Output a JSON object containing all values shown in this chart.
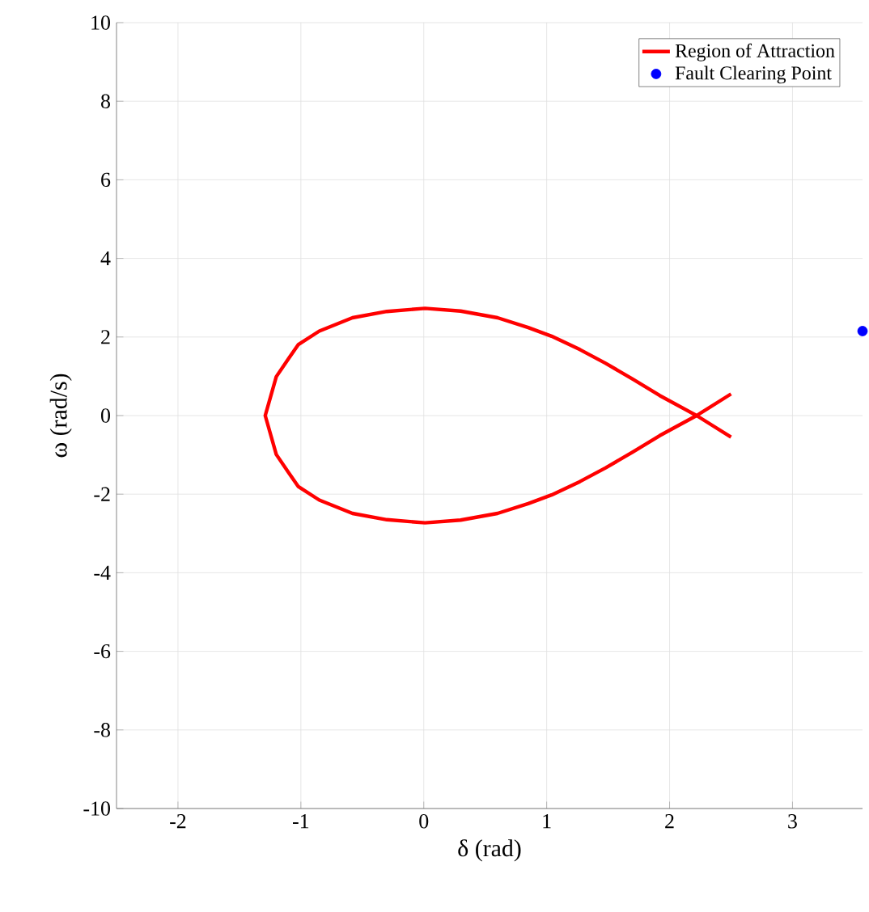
{
  "chart_data": {
    "type": "line",
    "xlabel": "δ (rad)",
    "ylabel": "ω (rad/s)",
    "xlim": [
      -2.5,
      3.57
    ],
    "ylim": [
      -10,
      10
    ],
    "xticks": [
      -2,
      -1,
      0,
      1,
      2,
      3
    ],
    "yticks": [
      -10,
      -8,
      -6,
      -4,
      -2,
      0,
      2,
      4,
      6,
      8,
      10
    ],
    "grid": true,
    "legend": "top right",
    "series": [
      {
        "name": "Region of Attraction",
        "color": "#ff0000",
        "marker": "none",
        "line_style": "solid",
        "x": [
          2.5,
          2.22,
          1.92,
          1.7,
          1.48,
          1.27,
          1.04,
          0.85,
          0.6,
          0.3,
          0.01,
          -0.3,
          -0.58,
          -0.85,
          -1.02,
          -1.1,
          -1.2,
          -1.29,
          -1.2,
          -1.1,
          -1.02,
          -0.85,
          -0.58,
          -0.3,
          0.01,
          0.3,
          0.6,
          0.85,
          1.04,
          1.27,
          1.48,
          1.7,
          1.92,
          2.22,
          2.5
        ],
        "values": [
          0.55,
          0,
          -0.51,
          -0.93,
          -1.33,
          -1.68,
          -2.02,
          -2.24,
          -2.49,
          -2.66,
          -2.73,
          -2.65,
          -2.49,
          -2.15,
          -1.81,
          -1.45,
          -0.99,
          0,
          0.99,
          1.45,
          1.81,
          2.15,
          2.49,
          2.65,
          2.73,
          2.66,
          2.49,
          2.24,
          2.02,
          1.68,
          1.33,
          0.93,
          0.51,
          0,
          -0.55
        ]
      },
      {
        "name": "Fault Clearing Point",
        "type": "scatter",
        "color": "#0000ff",
        "marker": "circle",
        "x": [
          3.57
        ],
        "values": [
          2.15
        ]
      }
    ]
  }
}
